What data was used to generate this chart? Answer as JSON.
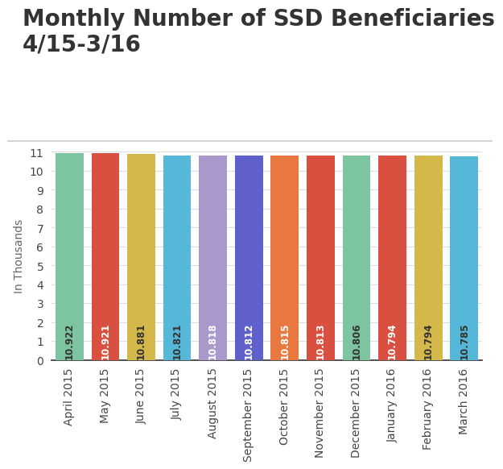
{
  "title_line1": "Monthly Number of SSD Beneficiaries",
  "title_line2": "4/15-3/16",
  "ylabel": "In Thousands",
  "categories": [
    "April 2015",
    "May 2015",
    "June 2015",
    "July 2015",
    "August 2015",
    "September 2015",
    "October 2015",
    "November 2015",
    "December 2015",
    "January 2016",
    "February 2016",
    "March 2016"
  ],
  "values": [
    10.922,
    10.921,
    10.881,
    10.821,
    10.818,
    10.812,
    10.815,
    10.813,
    10.806,
    10.794,
    10.794,
    10.785
  ],
  "bar_colors": [
    "#7dc4a0",
    "#d95040",
    "#d4b84a",
    "#55b8d8",
    "#a898cc",
    "#6060cc",
    "#e87840",
    "#d95040",
    "#7dc4a0",
    "#d95040",
    "#d4b84a",
    "#55b8d8"
  ],
  "value_text_colors": [
    "#333333",
    "#ffffff",
    "#a08000",
    "#2090b0",
    "#6040a0",
    "#ffffff",
    "#ffffff",
    "#ffffff",
    "#333333",
    "#ffffff",
    "#a08000",
    "#2090b0"
  ],
  "ylim": [
    0,
    11
  ],
  "yticks": [
    0,
    1,
    2,
    3,
    4,
    5,
    6,
    7,
    8,
    9,
    10,
    11
  ],
  "title_fontsize": 20,
  "axis_label_fontsize": 10,
  "tick_fontsize": 10,
  "value_fontsize": 8.5,
  "background_color": "#ffffff",
  "grid_color": "#dddddd",
  "title_color": "#333333",
  "separator_color": "#cccccc"
}
